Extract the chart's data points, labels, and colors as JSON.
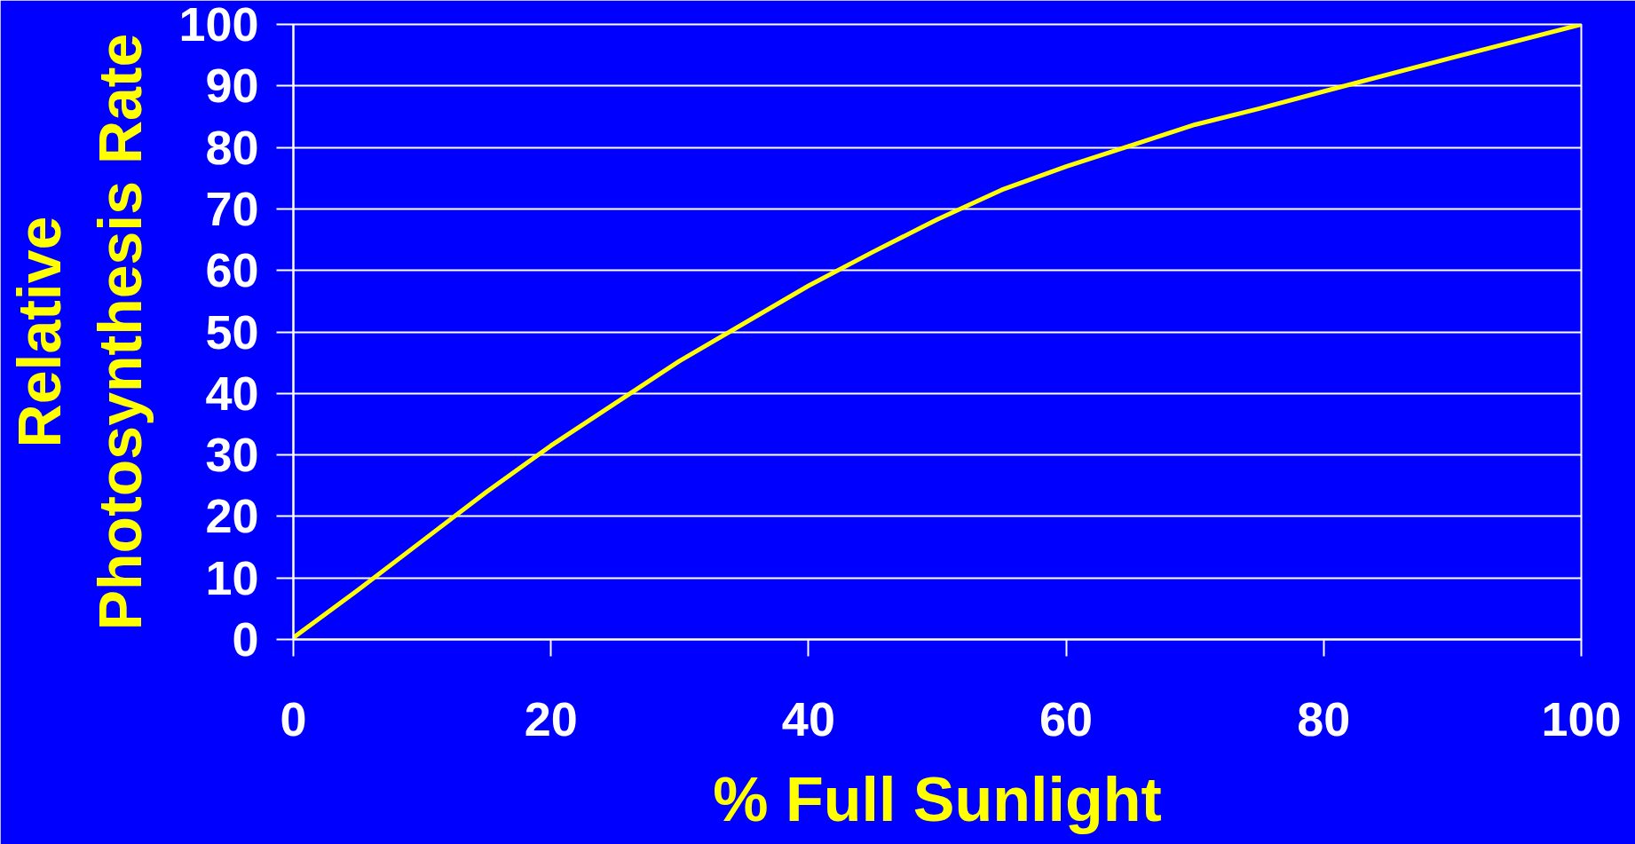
{
  "chart_data": {
    "type": "line",
    "xlabel": "% Full Sunlight",
    "ylabel": "Relative\nPhotosynthesis Rate",
    "x": [
      0,
      5,
      10,
      15,
      20,
      30,
      40,
      45,
      50,
      55,
      60,
      65,
      70,
      75,
      80,
      90,
      100
    ],
    "series": [
      {
        "color": "#ffff00",
        "values": [
          0.3,
          8,
          16,
          24,
          31.5,
          45.3,
          57.5,
          63,
          68.3,
          73.1,
          76.9,
          80.3,
          83.7,
          86.3,
          89.1,
          94.6,
          100
        ]
      }
    ],
    "xlim": [
      0,
      100
    ],
    "ylim": [
      0,
      100
    ],
    "xticks": [
      0,
      20,
      40,
      60,
      80,
      100
    ],
    "yticks": [
      0,
      10,
      20,
      30,
      40,
      50,
      60,
      70,
      80,
      90,
      100
    ],
    "grid": "y"
  }
}
